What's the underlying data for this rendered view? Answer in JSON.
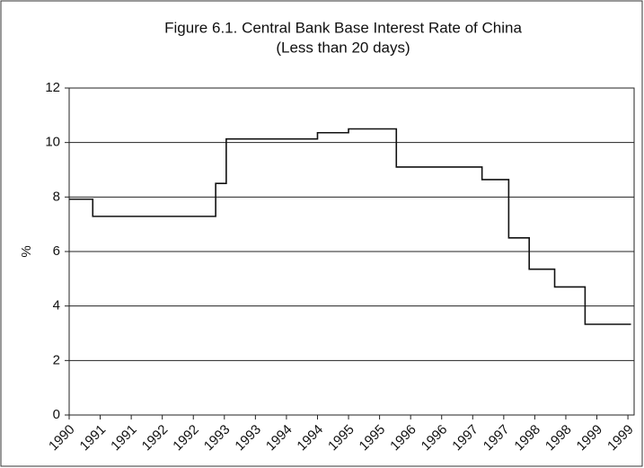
{
  "chart_data": {
    "type": "line",
    "step": "post",
    "title": "Figure 6.1. Central Bank Base Interest Rate of China",
    "subtitle": "(Less than 20 days)",
    "y_label": "%",
    "x": [
      1990,
      1990.38,
      1992.36,
      1992.53,
      1994.0,
      1994.5,
      1995.27,
      1996.65,
      1997.08,
      1997.41,
      1997.82,
      1998.31,
      1999.05
    ],
    "series": [
      {
        "name": "Base Interest Rate",
        "color": "#111111",
        "values": [
          7.92,
          7.29,
          8.5,
          10.13,
          10.36,
          10.5,
          9.1,
          8.64,
          6.5,
          5.35,
          4.7,
          3.33,
          3.33
        ]
      }
    ],
    "xlim": [
      1990,
      1999.1
    ],
    "xticks": [
      {
        "value": 1990,
        "label": "1990"
      },
      {
        "value": 1990.5,
        "label": "1991"
      },
      {
        "value": 1991,
        "label": "1991"
      },
      {
        "value": 1991.5,
        "label": "1992"
      },
      {
        "value": 1992,
        "label": "1992"
      },
      {
        "value": 1992.5,
        "label": "1993"
      },
      {
        "value": 1993,
        "label": "1993"
      },
      {
        "value": 1993.5,
        "label": "1994"
      },
      {
        "value": 1994,
        "label": "1994"
      },
      {
        "value": 1994.5,
        "label": "1995"
      },
      {
        "value": 1995,
        "label": "1995"
      },
      {
        "value": 1995.5,
        "label": "1996"
      },
      {
        "value": 1996,
        "label": "1996"
      },
      {
        "value": 1996.5,
        "label": "1997"
      },
      {
        "value": 1997,
        "label": "1997"
      },
      {
        "value": 1997.5,
        "label": "1998"
      },
      {
        "value": 1998,
        "label": "1998"
      },
      {
        "value": 1998.5,
        "label": "1999"
      },
      {
        "value": 1999,
        "label": "1999"
      }
    ],
    "ylim": [
      0,
      12
    ],
    "yticks": [
      0,
      2,
      4,
      6,
      8,
      10,
      12
    ],
    "grid": true
  }
}
